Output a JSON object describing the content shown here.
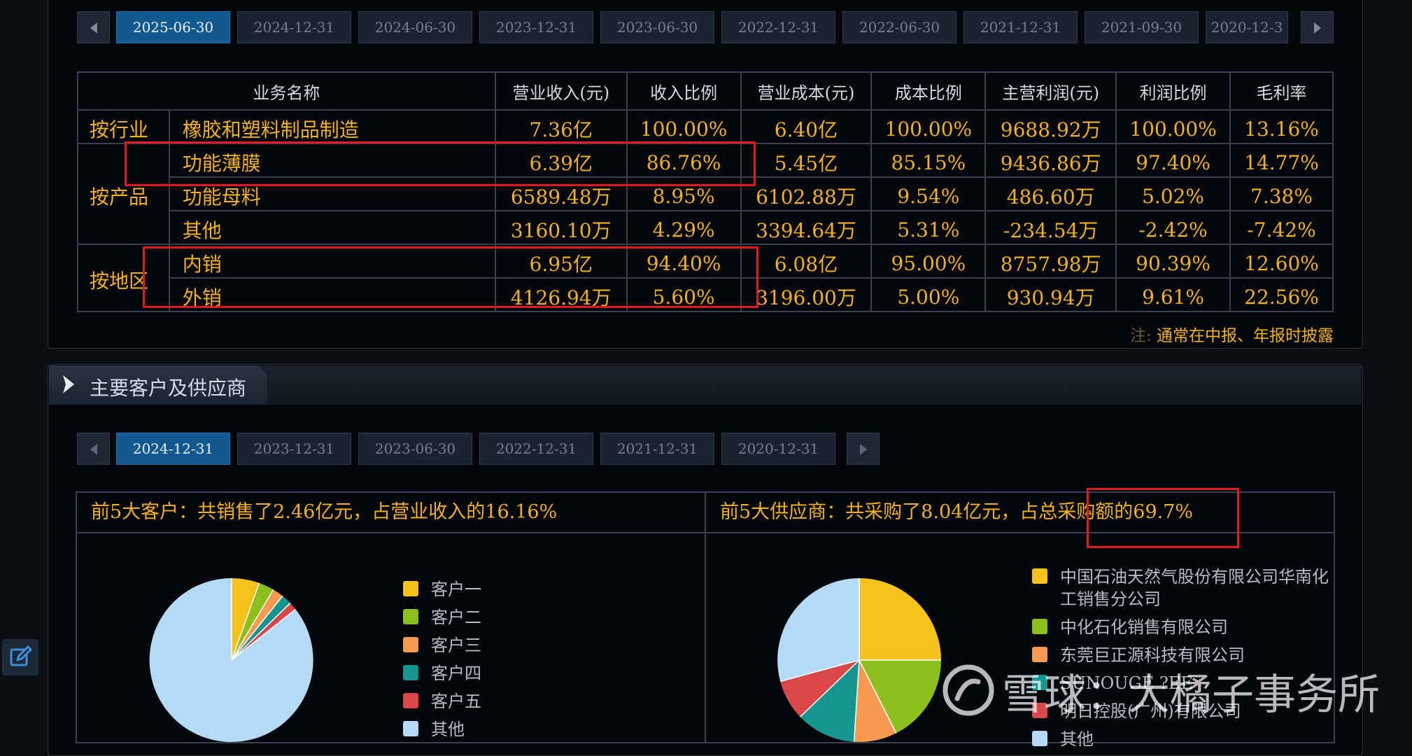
{
  "top_tabs": [
    "2025-06-30",
    "2024-12-31",
    "2024-06-30",
    "2023-12-31",
    "2023-06-30",
    "2022-12-31",
    "2022-06-30",
    "2021-12-31",
    "2021-09-30",
    "2020-12-3"
  ],
  "table": {
    "headers": [
      "业务名称",
      "营业收入(元)",
      "收入比例",
      "营业成本(元)",
      "成本比例",
      "主营利润(元)",
      "利润比例",
      "毛利率"
    ],
    "categories": {
      "industry": "按行业",
      "product": "按产品",
      "region": "按地区"
    },
    "rows": [
      {
        "name": "橡胶和塑料制品制造",
        "cells": [
          "7.36亿",
          "100.00%",
          "6.40亿",
          "100.00%",
          "9688.92万",
          "100.00%",
          "13.16%"
        ]
      },
      {
        "name": "功能薄膜",
        "cells": [
          "6.39亿",
          "86.76%",
          "5.45亿",
          "85.15%",
          "9436.86万",
          "97.40%",
          "14.77%"
        ]
      },
      {
        "name": "功能母料",
        "cells": [
          "6589.48万",
          "8.95%",
          "6102.88万",
          "9.54%",
          "486.60万",
          "5.02%",
          "7.38%"
        ]
      },
      {
        "name": "其他",
        "cells": [
          "3160.10万",
          "4.29%",
          "3394.64万",
          "5.31%",
          "-234.54万",
          "-2.42%",
          "-7.42%"
        ]
      },
      {
        "name": "内销",
        "cells": [
          "6.95亿",
          "94.40%",
          "6.08亿",
          "95.00%",
          "8757.98万",
          "90.39%",
          "12.60%"
        ]
      },
      {
        "name": "外销",
        "cells": [
          "4126.94万",
          "5.60%",
          "3196.00万",
          "5.00%",
          "930.94万",
          "9.61%",
          "22.56%"
        ]
      }
    ]
  },
  "note": {
    "label": "注:",
    "text": "通常在中报、年报时披露"
  },
  "section": {
    "title": "主要客户及供应商"
  },
  "bottom_tabs": [
    "2024-12-31",
    "2023-12-31",
    "2023-06-30",
    "2022-12-31",
    "2021-12-31",
    "2020-12-31"
  ],
  "customers": {
    "title": "前5大客户：共销售了2.46亿元，占营业收入的16.16%",
    "legend": [
      "客户一",
      "客户二",
      "客户三",
      "客户四",
      "客户五",
      "其他"
    ]
  },
  "suppliers": {
    "title": "前5大供应商：共采购了8.04亿元，占总采购额的69.7%",
    "legend": [
      "中国石油天然气股份有限公司华南化",
      "工销售分公司",
      "中化石化销售有限公司",
      "东莞巨正源科技有限公司",
      "SUNOUGE ?EE",
      "明日控股(广州)有限公司",
      "其他"
    ]
  },
  "colors": [
    "#f5c21b",
    "#8cbf1b",
    "#f59a50",
    "#14958f",
    "#d9474a",
    "#b5daf5"
  ],
  "watermark": "雪球：大橘子事务所"
}
